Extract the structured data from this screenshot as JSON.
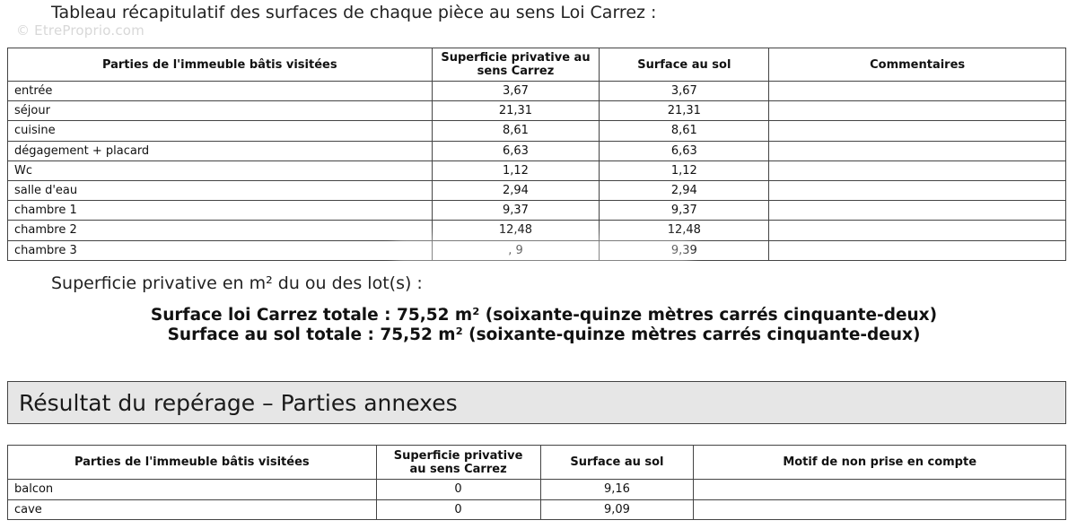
{
  "watermark": "© EtreProprio.com",
  "title": "Tableau récapitulatif des surfaces de chaque pièce au sens Loi Carrez :",
  "main_table": {
    "headers": {
      "parts": "Parties de l'immeuble bâtis visitées",
      "carrez_line1": "Superficie privative au",
      "carrez_line2": "sens Carrez",
      "sol": "Surface au sol",
      "comments": "Commentaires"
    },
    "rows": [
      {
        "name": "entrée",
        "carrez": "3,67",
        "sol": "3,67",
        "comment": ""
      },
      {
        "name": "séjour",
        "carrez": "21,31",
        "sol": "21,31",
        "comment": ""
      },
      {
        "name": "cuisine",
        "carrez": "8,61",
        "sol": "8,61",
        "comment": ""
      },
      {
        "name": "dégagement + placard",
        "carrez": "6,63",
        "sol": "6,63",
        "comment": ""
      },
      {
        "name": "Wc",
        "carrez": "1,12",
        "sol": "1,12",
        "comment": ""
      },
      {
        "name": "salle d'eau",
        "carrez": "2,94",
        "sol": "2,94",
        "comment": ""
      },
      {
        "name": "chambre 1",
        "carrez": "9,37",
        "sol": "9,37",
        "comment": ""
      },
      {
        "name": "chambre 2",
        "carrez": "12,48",
        "sol": "12,48",
        "comment": ""
      },
      {
        "name": "chambre 3",
        "carrez": ", 9",
        "sol": "9,39",
        "comment": ""
      }
    ]
  },
  "lot_heading": "Superficie privative en m² du ou des lot(s) :",
  "totals": {
    "carrez": "Surface loi Carrez totale : 75,52 m² (soixante-quinze mètres carrés cinquante-deux)",
    "sol": "Surface au sol totale : 75,52 m² (soixante-quinze mètres carrés cinquante-deux)"
  },
  "annex_section": {
    "title": "Résultat du repérage – Parties annexes",
    "headers": {
      "parts": "Parties de l'immeuble bâtis visitées",
      "carrez_line1": "Superficie privative",
      "carrez_line2": "au sens Carrez",
      "sol": "Surface au sol",
      "motif": "Motif de non prise en compte"
    },
    "rows": [
      {
        "name": "balcon",
        "carrez": "0",
        "sol": "9,16",
        "motif": ""
      },
      {
        "name": "cave",
        "carrez": "0",
        "sol": "9,09",
        "motif": ""
      }
    ]
  }
}
